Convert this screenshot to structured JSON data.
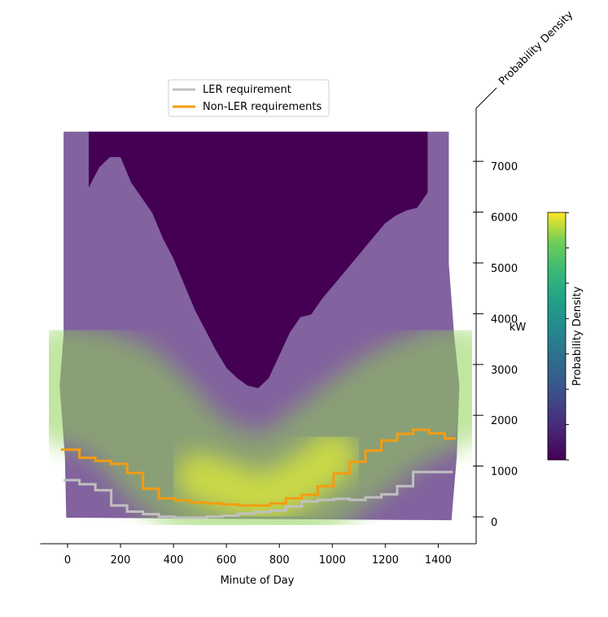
{
  "chart_data": {
    "type": "area",
    "xlabel": "Minute of Day",
    "ylabel": "kW",
    "zlabel": "Probability Density",
    "colorbar_label": "Probability Density",
    "colormap": "viridis",
    "xlim": [
      -100,
      1480
    ],
    "ylim": [
      -500,
      8000
    ],
    "x_ticks": [
      0,
      200,
      400,
      600,
      800,
      1000,
      1200,
      1400
    ],
    "y_ticks": [
      0,
      1000,
      2000,
      3000,
      4000,
      5000,
      6000,
      7000
    ],
    "grid": false,
    "legend_position": "top-center",
    "density_upper_edge": {
      "x": [
        80,
        120,
        160,
        200,
        240,
        280,
        320,
        360,
        400,
        440,
        480,
        520,
        560,
        600,
        640,
        680,
        720,
        760,
        800,
        840,
        880,
        920,
        960,
        1000,
        1040,
        1080,
        1120,
        1160,
        1200,
        1240,
        1280,
        1320,
        1360
      ],
      "y": [
        6500,
        6900,
        7100,
        7100,
        6600,
        6300,
        6000,
        5500,
        5100,
        4600,
        4100,
        3700,
        3300,
        2950,
        2750,
        2600,
        2550,
        2750,
        3200,
        3650,
        3950,
        4000,
        4300,
        4550,
        4800,
        5050,
        5300,
        5550,
        5800,
        5950,
        6050,
        6100,
        6400
      ]
    },
    "density_peak": {
      "x": [
        0,
        100,
        200,
        300,
        400,
        500,
        600,
        700,
        750,
        800,
        900,
        1000,
        1100,
        1200,
        1300,
        1400,
        1450
      ],
      "y": [
        2600,
        2500,
        2300,
        1800,
        1200,
        800,
        600,
        450,
        420,
        500,
        800,
        1200,
        1600,
        2000,
        2300,
        2500,
        2600
      ]
    },
    "series": [
      {
        "name": "LER requirement",
        "color": "#c0c0c0",
        "x": [
          -15,
          45,
          45,
          105,
          105,
          165,
          165,
          225,
          225,
          285,
          285,
          345,
          345,
          405,
          405,
          465,
          465,
          525,
          525,
          585,
          585,
          645,
          645,
          705,
          705,
          765,
          765,
          825,
          825,
          885,
          885,
          945,
          945,
          1005,
          1005,
          1065,
          1065,
          1125,
          1125,
          1185,
          1185,
          1245,
          1245,
          1305,
          1305,
          1365,
          1365,
          1425,
          1425,
          1455
        ],
        "y": [
          740,
          740,
          660,
          660,
          540,
          540,
          240,
          240,
          120,
          120,
          70,
          70,
          20,
          20,
          0,
          0,
          0,
          0,
          20,
          20,
          40,
          40,
          80,
          80,
          110,
          110,
          140,
          140,
          220,
          220,
          320,
          320,
          350,
          350,
          370,
          370,
          350,
          350,
          400,
          400,
          460,
          460,
          620,
          620,
          900,
          900,
          900,
          900,
          900,
          900
        ]
      },
      {
        "name": "Non-LER requirements",
        "color": "#f39c12",
        "x": [
          -25,
          45,
          45,
          105,
          105,
          165,
          165,
          225,
          225,
          285,
          285,
          345,
          345,
          405,
          405,
          465,
          465,
          525,
          525,
          585,
          585,
          645,
          645,
          705,
          705,
          765,
          765,
          825,
          825,
          885,
          885,
          945,
          945,
          1005,
          1005,
          1065,
          1065,
          1125,
          1125,
          1185,
          1185,
          1245,
          1245,
          1305,
          1305,
          1365,
          1365,
          1425,
          1425,
          1465
        ],
        "y": [
          1340,
          1340,
          1180,
          1180,
          1120,
          1120,
          1060,
          1060,
          880,
          880,
          570,
          570,
          380,
          380,
          340,
          340,
          300,
          300,
          280,
          280,
          260,
          260,
          240,
          240,
          240,
          240,
          280,
          280,
          380,
          380,
          450,
          450,
          620,
          620,
          870,
          870,
          1100,
          1100,
          1320,
          1320,
          1520,
          1520,
          1650,
          1650,
          1730,
          1730,
          1660,
          1660,
          1560,
          1560
        ]
      }
    ]
  }
}
